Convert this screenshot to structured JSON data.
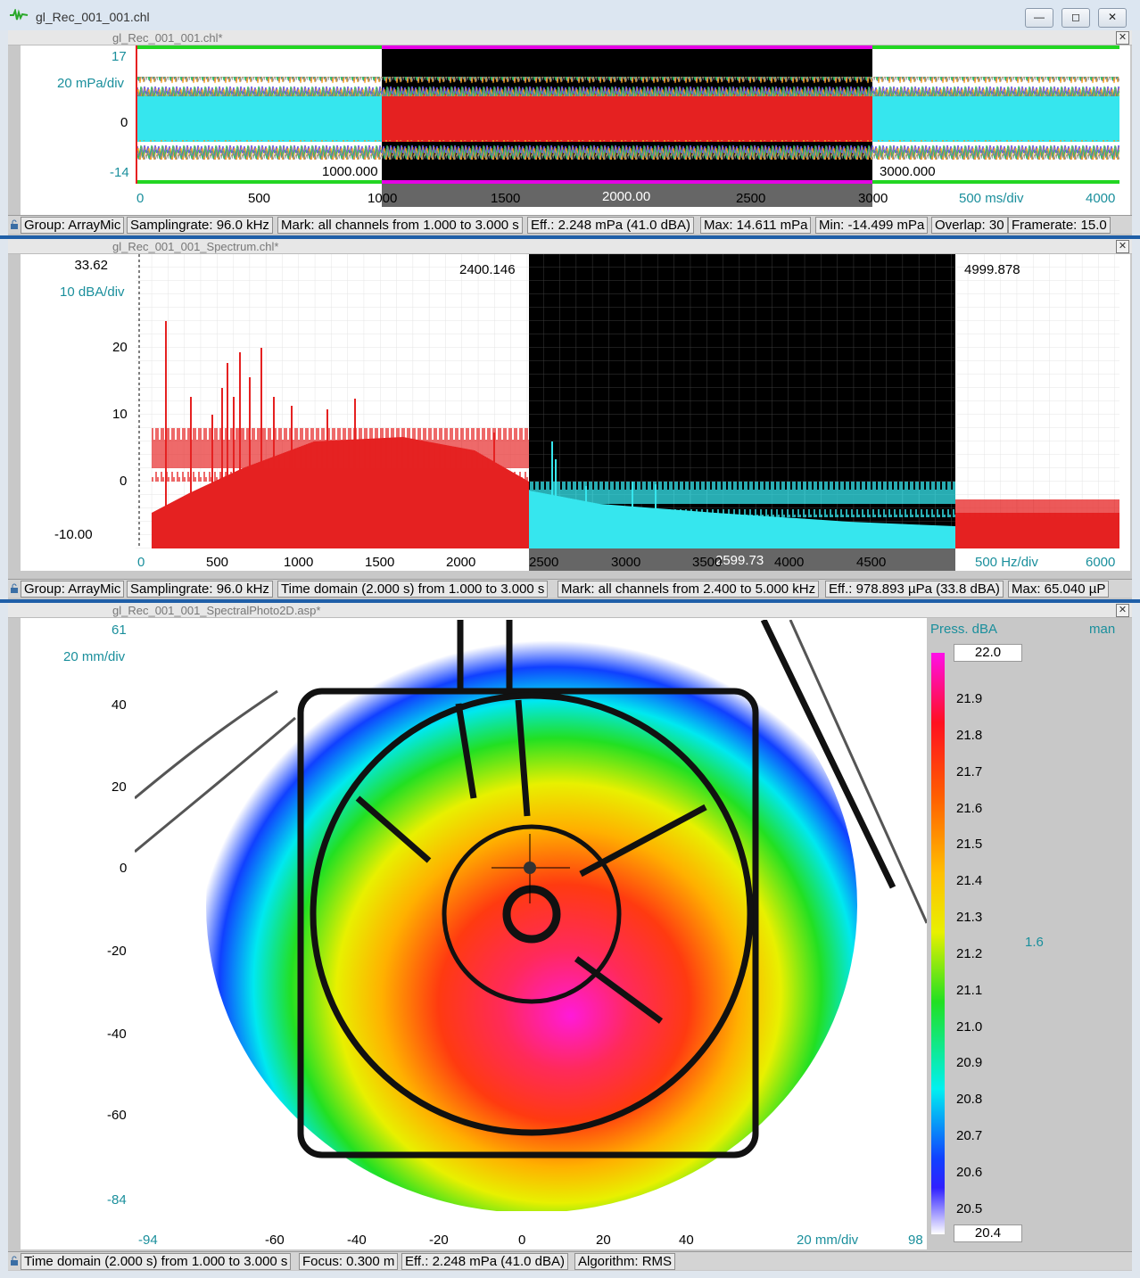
{
  "window": {
    "title": "gl_Rec_001_001.chl",
    "min_label": "—",
    "restore_label": "◻",
    "close_label": "✕"
  },
  "time_panel": {
    "title": "gl_Rec_001_001.chl*",
    "y_top": "17",
    "y_scale": "20 mPa/div",
    "y_zero": "0",
    "y_bottom": "-14",
    "x_ticks": [
      "0",
      "500",
      "1000",
      "1500",
      "2000",
      "2500",
      "3000"
    ],
    "x_scale": "500 ms/div",
    "x_end": "4000",
    "cursor_left": "1000.000",
    "cursor_right": "3000.000",
    "cursor_mid": "2000.00",
    "status": [
      "Group: ArrayMic",
      "Samplingrate: 96.0 kHz",
      "Mark: all channels from 1.000 to 3.000 s",
      "Eff.: 2.248 mPa (41.0 dBA)",
      "Max: 14.611 mPa",
      "Min: -14.499 mPa",
      "Overlap: 30",
      "Framerate: 15.0"
    ]
  },
  "spectrum_panel": {
    "title": "gl_Rec_001_001_Spectrum.chl*",
    "y_top_value": "33.62",
    "y_scale": "10 dBA/div",
    "y_ticks": [
      "20",
      "10",
      "0"
    ],
    "y_bottom_value": "-10.00",
    "x_ticks": [
      "0",
      "500",
      "1000",
      "1500",
      "2000",
      "2500",
      "3000",
      "3500",
      "4000",
      "4500"
    ],
    "x_scale": "500 Hz/div",
    "x_end": "6000",
    "cursor_left": "2400.146",
    "cursor_right": "4999.878",
    "cursor_mid": "2599.73",
    "status": [
      "Group: ArrayMic",
      "Samplingrate: 96.0 kHz",
      "Time domain (2.000 s) from 1.000 to 3.000 s",
      "Mark: all channels from 2.400 to 5.000 kHz",
      "Eff.: 978.893 µPa (33.8 dBA)",
      "Max: 65.040 µP"
    ]
  },
  "photo_panel": {
    "title": "gl_Rec_001_001_SpectralPhoto2D.asp*",
    "y_top": "61",
    "y_scale": "20 mm/div",
    "y_ticks": [
      "40",
      "20",
      "0",
      "-20",
      "-40",
      "-60"
    ],
    "y_bottom": "-84",
    "x_start": "-94",
    "x_ticks": [
      "-60",
      "-40",
      "-20",
      "0",
      "20",
      "40"
    ],
    "x_scale": "20 mm/div",
    "x_end": "98",
    "legend_title": "Press. dBA",
    "legend_mode": "man",
    "legend_range": "1.6",
    "legend_max": "22.0",
    "legend_min": "20.4",
    "legend_ticks": [
      "21.9",
      "21.8",
      "21.7",
      "21.6",
      "21.5",
      "21.4",
      "21.3",
      "21.2",
      "21.1",
      "21.0",
      "20.9",
      "20.8",
      "20.7",
      "20.6",
      "20.5"
    ],
    "status": [
      "Time domain (2.000 s) from 1.000 to 3.000 s",
      "Focus: 0.300 m",
      "Eff.: 2.248 mPa (41.0 dBA)",
      "Algorithm: RMS"
    ]
  },
  "colors": {
    "accent": "#1f5fa8",
    "marker": "#e600e6",
    "cursor_green": "#22d622",
    "signal_cyan": "#36e6ee",
    "signal_red": "#e52121"
  }
}
